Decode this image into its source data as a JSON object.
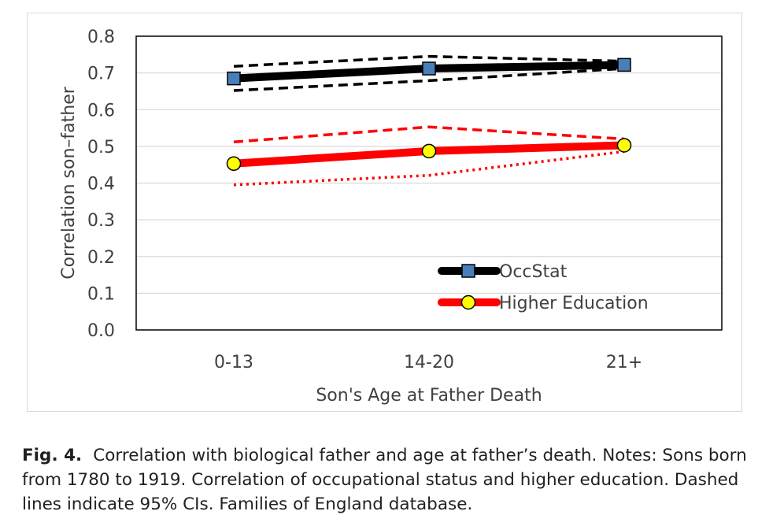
{
  "chart_data": {
    "type": "line",
    "categories": [
      "0-13",
      "14-20",
      "21+"
    ],
    "xlabel": "Son's Age at Father Death",
    "ylabel": "Correlation son–father",
    "ylim": [
      0,
      0.8
    ],
    "yticks": [
      "0.0",
      "0.1",
      "0.2",
      "0.3",
      "0.4",
      "0.5",
      "0.6",
      "0.7",
      "0.8"
    ],
    "grid": true,
    "legend_position": "bottom-center",
    "series": [
      {
        "name": "OccStat",
        "values": [
          0.685,
          0.712,
          0.722
        ],
        "ci_upper": [
          0.718,
          0.745,
          0.732
        ],
        "ci_lower": [
          0.652,
          0.679,
          0.712
        ],
        "color": "#000000",
        "marker": "square",
        "marker_color": "#4a7ebb"
      },
      {
        "name": "Higher Education",
        "values": [
          0.453,
          0.487,
          0.503
        ],
        "ci_upper": [
          0.512,
          0.553,
          0.52
        ],
        "ci_lower": [
          0.395,
          0.421,
          0.486
        ],
        "color": "#ff0000",
        "marker": "circle",
        "marker_color": "#ffff00"
      }
    ]
  },
  "caption": {
    "label": "Fig. 4.",
    "text": "Correlation with biological father and age at father’s death. Notes: Sons born from 1780 to 1919. Correlation of occupational status and higher education. Dashed lines indicate 95% CIs. Families of England database."
  }
}
